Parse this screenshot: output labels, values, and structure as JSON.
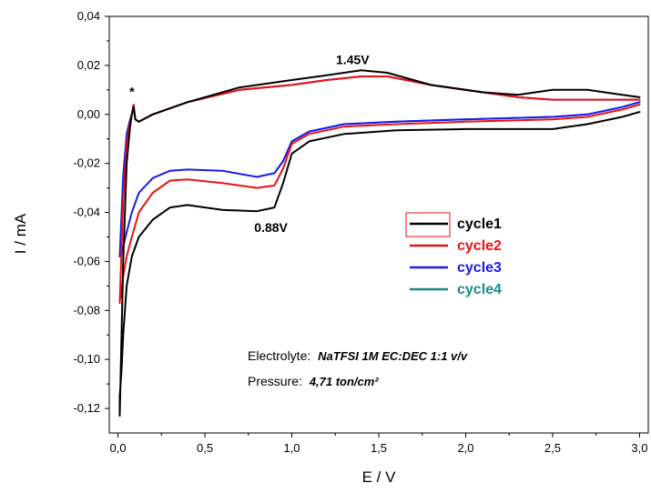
{
  "chart_data": {
    "type": "line",
    "title": "",
    "xlabel": "E / V",
    "ylabel": "I / mA",
    "xlim": [
      -0.05,
      3.05
    ],
    "ylim": [
      -0.13,
      0.04
    ],
    "x_ticks": [
      0.0,
      0.5,
      1.0,
      1.5,
      2.0,
      2.5,
      3.0
    ],
    "x_tick_labels": [
      "0,0",
      "0,5",
      "1,0",
      "1,5",
      "2,0",
      "2,5",
      "3,0"
    ],
    "y_ticks": [
      0.04,
      0.02,
      0.0,
      -0.02,
      -0.04,
      -0.06,
      -0.08,
      -0.1,
      -0.12
    ],
    "y_tick_labels": [
      "0,04",
      "0,02",
      "0,00",
      "-0,02",
      "-0,04",
      "-0,06",
      "-0,08",
      "-0,10",
      "-0,12"
    ],
    "grid": false,
    "legend_position": "right-middle",
    "series": [
      {
        "name": "cycle1",
        "color": "#000000",
        "x": [
          3.0,
          2.9,
          2.7,
          2.5,
          2.0,
          1.6,
          1.3,
          1.1,
          1.0,
          0.95,
          0.9,
          0.8,
          0.6,
          0.4,
          0.3,
          0.2,
          0.12,
          0.08,
          0.05,
          0.03,
          0.02,
          0.01,
          0.01,
          0.03,
          0.05,
          0.07,
          0.08,
          0.09,
          0.1,
          0.12,
          0.2,
          0.4,
          0.7,
          1.0,
          1.2,
          1.4,
          1.55,
          1.8,
          2.1,
          2.3,
          2.5,
          2.7,
          2.9,
          3.0
        ],
        "y": [
          0.001,
          -0.001,
          -0.004,
          -0.006,
          -0.006,
          -0.0065,
          -0.008,
          -0.011,
          -0.016,
          -0.028,
          -0.038,
          -0.0395,
          -0.039,
          -0.037,
          -0.038,
          -0.043,
          -0.05,
          -0.058,
          -0.07,
          -0.09,
          -0.105,
          -0.115,
          -0.123,
          -0.06,
          -0.02,
          -0.005,
          0.0,
          0.003,
          -0.002,
          -0.003,
          0.0,
          0.005,
          0.011,
          0.014,
          0.016,
          0.018,
          0.017,
          0.012,
          0.009,
          0.008,
          0.01,
          0.01,
          0.008,
          0.007
        ]
      },
      {
        "name": "cycle2",
        "color": "#ee1111",
        "x": [
          3.0,
          2.9,
          2.7,
          2.5,
          2.0,
          1.6,
          1.3,
          1.1,
          1.0,
          0.95,
          0.9,
          0.8,
          0.6,
          0.4,
          0.3,
          0.2,
          0.12,
          0.08,
          0.05,
          0.03,
          0.02,
          0.01,
          0.01,
          0.03,
          0.05,
          0.07,
          0.08,
          0.09,
          0.1,
          0.12,
          0.2,
          0.4,
          0.7,
          1.0,
          1.2,
          1.4,
          1.55,
          1.8,
          2.1,
          2.3,
          2.5,
          2.7,
          2.9,
          3.0
        ],
        "y": [
          0.004,
          0.002,
          -0.001,
          -0.002,
          -0.003,
          -0.004,
          -0.005,
          -0.008,
          -0.012,
          -0.022,
          -0.029,
          -0.03,
          -0.028,
          -0.0265,
          -0.027,
          -0.032,
          -0.04,
          -0.05,
          -0.058,
          -0.066,
          -0.073,
          -0.076,
          -0.077,
          -0.035,
          -0.012,
          -0.003,
          0.0,
          0.004,
          -0.002,
          -0.003,
          0.0,
          0.005,
          0.01,
          0.012,
          0.014,
          0.0155,
          0.0155,
          0.012,
          0.009,
          0.007,
          0.006,
          0.006,
          0.006,
          0.006
        ]
      },
      {
        "name": "cycle3",
        "color": "#1a1aee",
        "x": [
          3.0,
          2.9,
          2.7,
          2.5,
          2.0,
          1.6,
          1.3,
          1.1,
          1.0,
          0.95,
          0.9,
          0.8,
          0.6,
          0.4,
          0.3,
          0.2,
          0.12,
          0.08,
          0.05,
          0.03,
          0.02,
          0.01,
          0.01,
          0.03,
          0.05,
          0.07,
          0.08,
          0.09,
          0.1,
          0.12,
          0.2,
          0.4,
          0.7,
          1.0,
          1.2,
          1.4,
          1.55,
          1.8,
          2.1,
          2.3,
          2.5,
          2.7,
          2.9,
          3.0
        ],
        "y": [
          0.005,
          0.003,
          0.0,
          -0.001,
          -0.002,
          -0.003,
          -0.004,
          -0.007,
          -0.011,
          -0.019,
          -0.024,
          -0.0255,
          -0.023,
          -0.0225,
          -0.023,
          -0.026,
          -0.032,
          -0.04,
          -0.048,
          -0.054,
          -0.057,
          -0.058,
          -0.058,
          -0.025,
          -0.008,
          -0.002,
          0.0,
          0.004,
          -0.002,
          -0.003,
          0.0,
          0.005,
          0.01,
          0.012,
          0.014,
          0.0155,
          0.0155,
          0.012,
          0.009,
          0.007,
          0.006,
          0.006,
          0.006,
          0.006
        ]
      },
      {
        "name": "cycle4",
        "color": "#1a8a8a",
        "x": [
          3.0,
          2.9,
          2.7,
          2.5,
          2.0,
          1.6,
          1.3,
          1.1,
          1.0,
          0.95,
          0.9
        ],
        "y": [
          0.005,
          0.003,
          0.0,
          -0.001,
          -0.002,
          -0.003,
          -0.004,
          -0.007,
          -0.011,
          -0.019,
          -0.024
        ]
      }
    ],
    "annotations": [
      {
        "text": "1.45V",
        "x": 1.35,
        "y": 0.0205
      },
      {
        "text": "0.88V",
        "x": 0.88,
        "y": -0.048
      },
      {
        "text": "*",
        "x": 0.08,
        "y": 0.0075
      }
    ],
    "info": {
      "electrolyte_label": "Electrolyte:",
      "electrolyte_value": "NaTFSI 1M EC:DEC 1:1 v/v",
      "pressure_label": "Pressure:",
      "pressure_value": "4,71 ton/cm²"
    }
  }
}
